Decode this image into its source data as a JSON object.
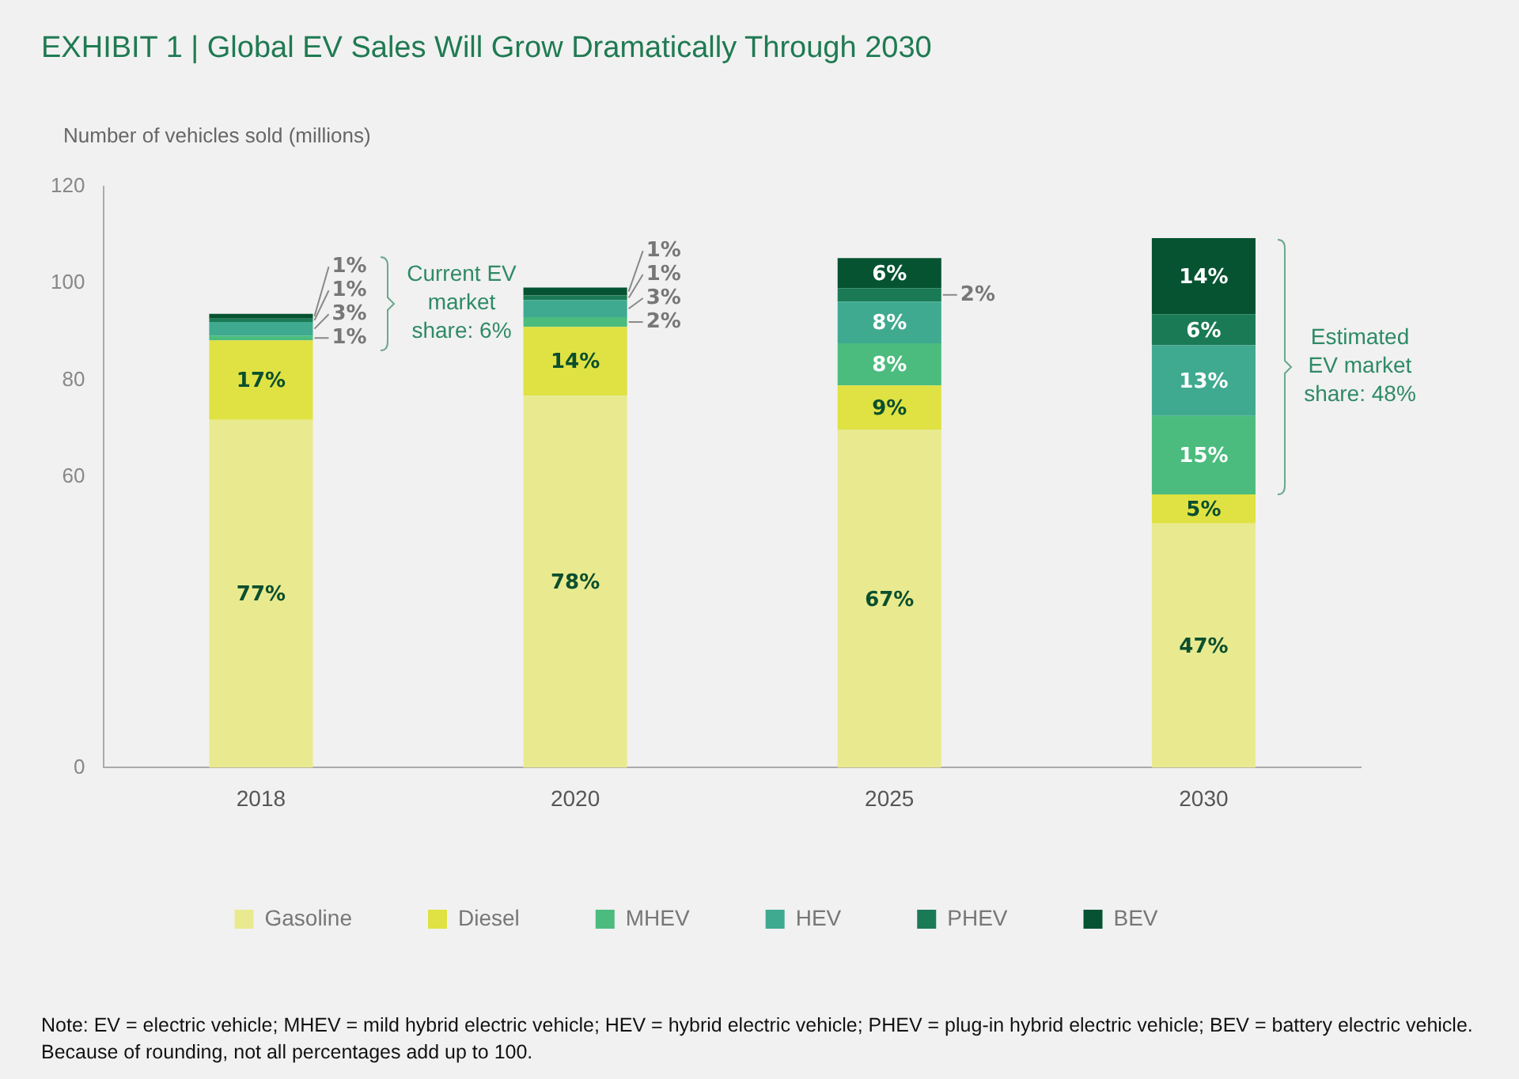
{
  "chart_data": {
    "type": "bar",
    "stacked": true,
    "title": "EXHIBIT 1 | Global EV Sales Will Grow Dramatically Through 2030",
    "ylabel": "Number of vehicles sold (millions)",
    "categories": [
      "2018",
      "2020",
      "2025",
      "2030"
    ],
    "series": [
      {
        "name": "Gasoline",
        "color": "#e9ea8f",
        "values": [
          71.8,
          76.8,
          69.7,
          50.4
        ]
      },
      {
        "name": "Diesel",
        "color": "#dfe242",
        "values": [
          16.4,
          14.2,
          9.2,
          6.0
        ]
      },
      {
        "name": "MHEV",
        "color": "#4bbc7e",
        "values": [
          1.0,
          2.0,
          8.7,
          16.2
        ]
      },
      {
        "name": "HEV",
        "color": "#3faa90",
        "values": [
          2.8,
          3.5,
          8.6,
          14.6
        ]
      },
      {
        "name": "PHEV",
        "color": "#1b7a56",
        "values": [
          0.7,
          1.0,
          2.8,
          6.4
        ]
      },
      {
        "name": "BEV",
        "color": "#065331",
        "values": [
          1.0,
          1.6,
          6.2,
          15.7
        ]
      }
    ],
    "ylim": [
      0,
      120
    ],
    "yticks": [
      0,
      60,
      80,
      100,
      120
    ],
    "grid": false,
    "legend": "bottom",
    "annotations": [
      "77%",
      "17%",
      "1%",
      "3%",
      "1%",
      "1%",
      "78%",
      "14%",
      "2%",
      "3%",
      "1%",
      "1%",
      "67%",
      "9%",
      "8%",
      "8%",
      "2%",
      "6%",
      "47%",
      "5%",
      "15%",
      "13%",
      "6%",
      "14%",
      "Current EV market share: 6%",
      "Estimated EV market share: 48%",
      "Note: EV = electric vehicle; MHEV = mild hybrid electric vehicle; HEV = hybrid electric vehicle; PHEV = plug-in hybrid electric vehicle; BEV = battery electric vehicle. Because of rounding, not all percentages add up to 100."
    ]
  }
}
